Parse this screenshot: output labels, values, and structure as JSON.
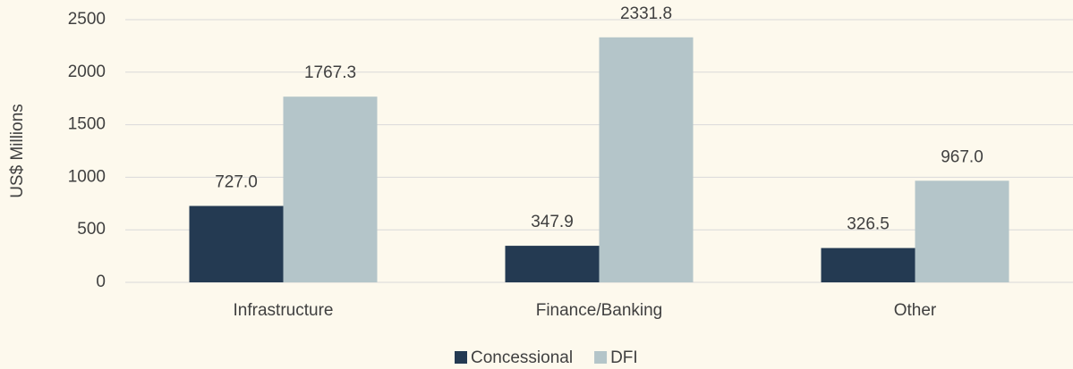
{
  "chart_data": {
    "type": "bar",
    "y_label": "US$ Millions",
    "categories": [
      "Infrastructure",
      "Finance/Banking",
      "Other"
    ],
    "series": [
      {
        "name": "Concessional",
        "color": "#243a52",
        "values": [
          727.0,
          347.9,
          326.5
        ],
        "value_labels": [
          "727.0",
          "347.9",
          "326.5"
        ]
      },
      {
        "name": "DFI",
        "color": "#b4c5c9",
        "values": [
          1767.3,
          2331.8,
          967.0
        ],
        "value_labels": [
          "1767.3",
          "2331.8",
          "967.0"
        ]
      }
    ],
    "ylim": [
      0,
      2500
    ],
    "yticks": [
      0,
      500,
      1000,
      1500,
      2000,
      2500
    ],
    "grid": true,
    "legend": "bottom"
  }
}
